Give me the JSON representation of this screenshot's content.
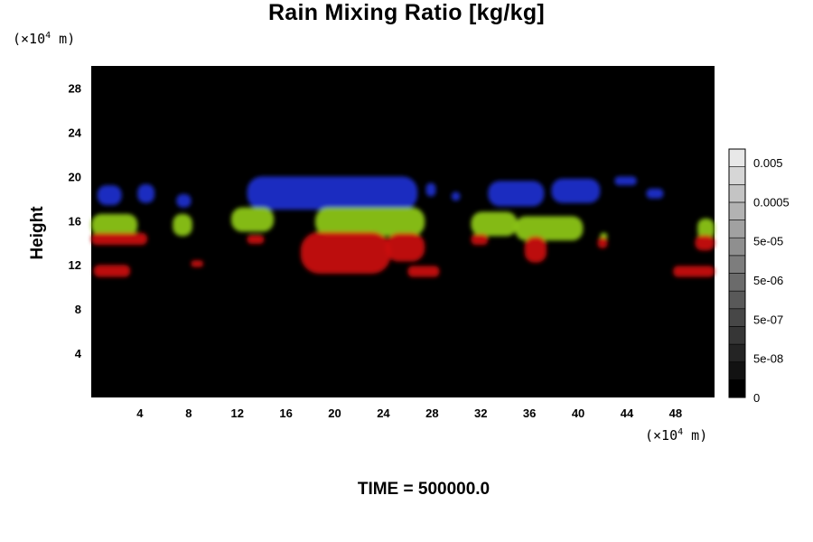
{
  "chart_data": {
    "type": "heatmap",
    "title": "Rain Mixing Ratio [kg/kg]",
    "ylabel": "Height",
    "x_unit": {
      "prefix": "(×10",
      "exp": "4",
      "suffix": " m)"
    },
    "y_unit": {
      "prefix": "(×10",
      "exp": "4",
      "suffix": " m)"
    },
    "x_ticks": [
      4,
      8,
      12,
      16,
      20,
      24,
      28,
      32,
      36,
      40,
      44,
      48
    ],
    "y_ticks": [
      4,
      8,
      12,
      16,
      20,
      24,
      28
    ],
    "xlim": [
      0,
      51.2
    ],
    "ylim": [
      0,
      30
    ],
    "colorbar": {
      "labels": [
        "0.005",
        "0.0005",
        "5e-05",
        "5e-06",
        "5e-07",
        "5e-08",
        "0"
      ],
      "levels": 14
    },
    "colors": {
      "background": "#000000",
      "upper_layer": "#1f2fd0",
      "middle_layer": "#8fca1a",
      "lower_layer": "#cc1010"
    },
    "regions": [
      {
        "layer": "upper",
        "x": [
          0.5,
          2.5
        ],
        "y": [
          17.4,
          19.2
        ]
      },
      {
        "layer": "upper",
        "x": [
          3.8,
          5.2
        ],
        "y": [
          17.6,
          19.3
        ]
      },
      {
        "layer": "upper",
        "x": [
          7.0,
          8.2
        ],
        "y": [
          17.2,
          18.4
        ]
      },
      {
        "layer": "upper",
        "x": [
          12.8,
          26.8
        ],
        "y": [
          17.0,
          20.0
        ]
      },
      {
        "layer": "upper",
        "x": [
          27.5,
          28.3
        ],
        "y": [
          18.2,
          19.4
        ]
      },
      {
        "layer": "upper",
        "x": [
          29.6,
          30.3
        ],
        "y": [
          17.8,
          18.6
        ]
      },
      {
        "layer": "upper",
        "x": [
          32.6,
          37.2
        ],
        "y": [
          17.3,
          19.6
        ]
      },
      {
        "layer": "upper",
        "x": [
          37.8,
          41.8
        ],
        "y": [
          17.6,
          19.8
        ]
      },
      {
        "layer": "upper",
        "x": [
          43.0,
          44.8
        ],
        "y": [
          19.2,
          20.0
        ]
      },
      {
        "layer": "upper",
        "x": [
          45.6,
          47.0
        ],
        "y": [
          18.0,
          18.9
        ]
      },
      {
        "layer": "middle",
        "x": [
          0.0,
          3.8
        ],
        "y": [
          14.6,
          16.6
        ]
      },
      {
        "layer": "middle",
        "x": [
          6.7,
          8.3
        ],
        "y": [
          14.6,
          16.6
        ]
      },
      {
        "layer": "middle",
        "x": [
          11.5,
          15.0
        ],
        "y": [
          15.0,
          17.2
        ]
      },
      {
        "layer": "middle",
        "x": [
          18.4,
          27.4
        ],
        "y": [
          14.6,
          17.2
        ]
      },
      {
        "layer": "middle",
        "x": [
          31.2,
          35.0
        ],
        "y": [
          14.6,
          16.8
        ]
      },
      {
        "layer": "middle",
        "x": [
          34.8,
          40.4
        ],
        "y": [
          14.2,
          16.4
        ]
      },
      {
        "layer": "middle",
        "x": [
          41.8,
          42.4
        ],
        "y": [
          14.3,
          14.9
        ]
      },
      {
        "layer": "middle",
        "x": [
          49.8,
          51.2
        ],
        "y": [
          14.3,
          16.2
        ]
      },
      {
        "layer": "lower",
        "x": [
          0.0,
          4.6
        ],
        "y": [
          13.8,
          14.9
        ]
      },
      {
        "layer": "lower",
        "x": [
          12.8,
          14.2
        ],
        "y": [
          13.9,
          14.7
        ]
      },
      {
        "layer": "lower",
        "x": [
          17.2,
          24.6
        ],
        "y": [
          11.2,
          15.0
        ]
      },
      {
        "layer": "lower",
        "x": [
          24.2,
          27.4
        ],
        "y": [
          12.3,
          14.9
        ]
      },
      {
        "layer": "lower",
        "x": [
          31.2,
          32.6
        ],
        "y": [
          13.8,
          14.8
        ]
      },
      {
        "layer": "lower",
        "x": [
          35.6,
          37.4
        ],
        "y": [
          12.2,
          14.6
        ]
      },
      {
        "layer": "lower",
        "x": [
          41.6,
          42.4
        ],
        "y": [
          13.5,
          14.5
        ]
      },
      {
        "layer": "lower",
        "x": [
          49.6,
          51.2
        ],
        "y": [
          13.3,
          14.7
        ]
      },
      {
        "layer": "lower",
        "x": [
          0.2,
          3.2
        ],
        "y": [
          10.9,
          12.0
        ]
      },
      {
        "layer": "lower",
        "x": [
          8.2,
          9.2
        ],
        "y": [
          11.8,
          12.4
        ]
      },
      {
        "layer": "lower",
        "x": [
          26.0,
          28.6
        ],
        "y": [
          10.9,
          11.9
        ]
      },
      {
        "layer": "lower",
        "x": [
          47.8,
          51.2
        ],
        "y": [
          10.9,
          11.9
        ]
      }
    ]
  },
  "footer": {
    "label": "TIME = 500000.0"
  }
}
